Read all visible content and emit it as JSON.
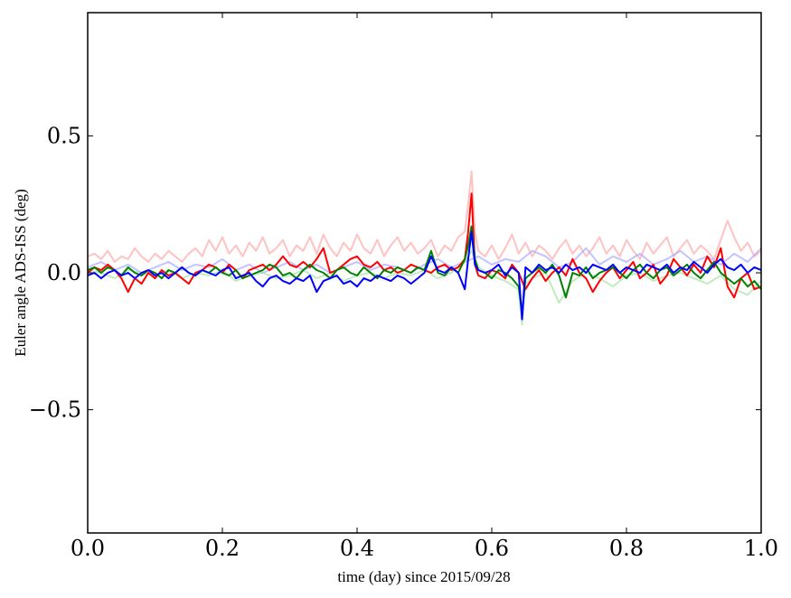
{
  "chart_data": {
    "type": "line",
    "title": "",
    "xlabel": "time (day) since 2015/09/28",
    "ylabel": "Euler angle ADS-ISS (deg)",
    "xlim": [
      0.0,
      1.0
    ],
    "ylim": [
      -0.95,
      0.95
    ],
    "xticks": [
      {
        "value": 0.0,
        "label": "0.0"
      },
      {
        "value": 0.2,
        "label": "0.2"
      },
      {
        "value": 0.4,
        "label": "0.4"
      },
      {
        "value": 0.6,
        "label": "0.6"
      },
      {
        "value": 0.8,
        "label": "0.8"
      },
      {
        "value": 1.0,
        "label": "1.0"
      }
    ],
    "yticks": [
      {
        "value": 0.5,
        "label": "0.5"
      },
      {
        "value": 0.0,
        "label": "0.0"
      },
      {
        "value": -0.5,
        "label": "−0.5"
      }
    ],
    "grid": false,
    "legend": "none",
    "series": [
      {
        "color": "#ff9999",
        "opacity": 0.6,
        "x": [
          0.0,
          0.01,
          0.02,
          0.03,
          0.04,
          0.05,
          0.06,
          0.07,
          0.08,
          0.09,
          0.1,
          0.11,
          0.12,
          0.13,
          0.14,
          0.15,
          0.16,
          0.17,
          0.18,
          0.19,
          0.2,
          0.21,
          0.22,
          0.23,
          0.24,
          0.25,
          0.26,
          0.27,
          0.28,
          0.29,
          0.3,
          0.31,
          0.32,
          0.33,
          0.34,
          0.35,
          0.36,
          0.37,
          0.38,
          0.39,
          0.4,
          0.41,
          0.42,
          0.43,
          0.44,
          0.45,
          0.46,
          0.47,
          0.48,
          0.49,
          0.5,
          0.51,
          0.52,
          0.53,
          0.54,
          0.55,
          0.56,
          0.565,
          0.57,
          0.575,
          0.58,
          0.59,
          0.6,
          0.61,
          0.62,
          0.63,
          0.64,
          0.65,
          0.66,
          0.67,
          0.68,
          0.69,
          0.7,
          0.71,
          0.72,
          0.73,
          0.74,
          0.75,
          0.76,
          0.77,
          0.78,
          0.79,
          0.8,
          0.81,
          0.82,
          0.83,
          0.84,
          0.85,
          0.86,
          0.87,
          0.88,
          0.89,
          0.9,
          0.91,
          0.92,
          0.93,
          0.94,
          0.95,
          0.96,
          0.97,
          0.98,
          0.99,
          1.0
        ],
        "y": [
          0.06,
          0.07,
          0.05,
          0.08,
          0.04,
          0.06,
          0.05,
          0.09,
          0.06,
          0.04,
          0.07,
          0.05,
          0.08,
          0.06,
          0.04,
          0.07,
          0.09,
          0.06,
          0.12,
          0.08,
          0.13,
          0.07,
          0.1,
          0.06,
          0.11,
          0.08,
          0.13,
          0.07,
          0.09,
          0.12,
          0.06,
          0.1,
          0.08,
          0.13,
          0.07,
          0.14,
          0.09,
          0.06,
          0.11,
          0.08,
          0.14,
          0.09,
          0.07,
          0.12,
          0.06,
          0.1,
          0.13,
          0.08,
          0.11,
          0.07,
          0.09,
          0.12,
          0.06,
          0.1,
          0.08,
          0.13,
          0.15,
          0.25,
          0.37,
          0.15,
          0.08,
          0.06,
          0.1,
          0.05,
          0.09,
          0.14,
          0.07,
          0.11,
          0.06,
          0.1,
          0.08,
          0.05,
          0.09,
          0.12,
          0.07,
          0.1,
          0.06,
          0.09,
          0.13,
          0.07,
          0.1,
          0.06,
          0.12,
          0.08,
          0.05,
          0.11,
          0.07,
          0.1,
          0.13,
          0.06,
          0.09,
          0.12,
          0.07,
          0.1,
          0.08,
          0.05,
          0.12,
          0.19,
          0.13,
          0.08,
          0.11,
          0.06,
          0.08
        ]
      },
      {
        "color": "#aaaaff",
        "opacity": 0.7,
        "x": [
          0.0,
          0.02,
          0.04,
          0.06,
          0.08,
          0.1,
          0.12,
          0.14,
          0.16,
          0.18,
          0.2,
          0.22,
          0.24,
          0.26,
          0.28,
          0.3,
          0.32,
          0.34,
          0.36,
          0.38,
          0.4,
          0.42,
          0.44,
          0.46,
          0.48,
          0.5,
          0.52,
          0.54,
          0.56,
          0.58,
          0.6,
          0.62,
          0.64,
          0.66,
          0.68,
          0.7,
          0.72,
          0.74,
          0.76,
          0.78,
          0.8,
          0.82,
          0.84,
          0.86,
          0.88,
          0.9,
          0.92,
          0.94,
          0.96,
          0.98,
          1.0
        ],
        "y": [
          0.02,
          0.04,
          0.01,
          0.03,
          0.0,
          0.02,
          0.04,
          0.01,
          0.03,
          0.02,
          0.05,
          0.01,
          0.03,
          0.0,
          0.02,
          0.04,
          0.01,
          0.03,
          0.0,
          0.02,
          0.04,
          0.01,
          0.03,
          0.02,
          0.0,
          0.03,
          0.05,
          0.02,
          0.04,
          0.06,
          0.03,
          0.05,
          0.04,
          0.08,
          0.06,
          0.02,
          0.04,
          0.09,
          0.03,
          0.06,
          0.04,
          0.07,
          0.03,
          0.05,
          0.08,
          0.04,
          0.06,
          0.03,
          0.07,
          0.04,
          0.09
        ]
      },
      {
        "color": "#99dd99",
        "opacity": 0.6,
        "x": [
          0.0,
          0.02,
          0.04,
          0.06,
          0.08,
          0.1,
          0.12,
          0.14,
          0.16,
          0.18,
          0.2,
          0.22,
          0.24,
          0.26,
          0.28,
          0.3,
          0.32,
          0.34,
          0.36,
          0.38,
          0.4,
          0.42,
          0.44,
          0.46,
          0.48,
          0.5,
          0.52,
          0.54,
          0.56,
          0.57,
          0.58,
          0.6,
          0.62,
          0.64,
          0.645,
          0.65,
          0.66,
          0.68,
          0.7,
          0.72,
          0.74,
          0.76,
          0.78,
          0.8,
          0.82,
          0.84,
          0.86,
          0.88,
          0.9,
          0.92,
          0.94,
          0.96,
          0.98,
          1.0
        ],
        "y": [
          0.01,
          0.0,
          -0.02,
          0.01,
          0.0,
          -0.01,
          0.01,
          -0.02,
          0.0,
          -0.01,
          0.01,
          -0.03,
          -0.01,
          0.0,
          -0.02,
          -0.01,
          0.01,
          -0.02,
          0.0,
          -0.03,
          -0.01,
          0.0,
          -0.02,
          0.0,
          -0.01,
          0.01,
          -0.02,
          0.0,
          0.04,
          0.08,
          0.02,
          -0.01,
          -0.03,
          -0.06,
          -0.19,
          -0.04,
          -0.02,
          0.0,
          -0.11,
          -0.03,
          0.0,
          -0.02,
          -0.05,
          -0.01,
          0.0,
          -0.03,
          -0.01,
          0.0,
          -0.02,
          -0.04,
          -0.01,
          -0.06,
          -0.08,
          -0.03
        ]
      },
      {
        "color": "#ff0000",
        "opacity": 1,
        "x": [
          0.0,
          0.01,
          0.02,
          0.03,
          0.04,
          0.05,
          0.06,
          0.07,
          0.08,
          0.09,
          0.1,
          0.11,
          0.12,
          0.13,
          0.14,
          0.15,
          0.16,
          0.17,
          0.18,
          0.19,
          0.2,
          0.21,
          0.22,
          0.23,
          0.24,
          0.25,
          0.26,
          0.27,
          0.28,
          0.29,
          0.3,
          0.31,
          0.32,
          0.33,
          0.34,
          0.35,
          0.36,
          0.37,
          0.38,
          0.39,
          0.4,
          0.41,
          0.42,
          0.43,
          0.44,
          0.45,
          0.46,
          0.47,
          0.48,
          0.49,
          0.5,
          0.51,
          0.52,
          0.53,
          0.54,
          0.55,
          0.56,
          0.565,
          0.57,
          0.575,
          0.58,
          0.59,
          0.6,
          0.61,
          0.62,
          0.63,
          0.64,
          0.65,
          0.66,
          0.67,
          0.68,
          0.69,
          0.7,
          0.71,
          0.72,
          0.73,
          0.74,
          0.75,
          0.76,
          0.77,
          0.78,
          0.79,
          0.8,
          0.81,
          0.82,
          0.83,
          0.84,
          0.85,
          0.86,
          0.87,
          0.88,
          0.89,
          0.9,
          0.91,
          0.92,
          0.93,
          0.94,
          0.95,
          0.96,
          0.97,
          0.98,
          0.99,
          1.0
        ],
        "y": [
          0.0,
          0.02,
          0.01,
          0.03,
          0.01,
          -0.02,
          -0.07,
          -0.02,
          -0.04,
          0.0,
          -0.02,
          0.01,
          -0.01,
          0.0,
          -0.02,
          -0.04,
          0.0,
          0.01,
          0.03,
          0.02,
          0.0,
          0.03,
          0.01,
          -0.02,
          0.01,
          0.02,
          0.03,
          0.01,
          0.03,
          0.06,
          0.03,
          0.02,
          0.04,
          0.02,
          0.05,
          0.09,
          0.0,
          0.01,
          0.03,
          0.05,
          0.06,
          0.03,
          0.02,
          0.04,
          0.01,
          0.02,
          0.0,
          0.01,
          0.03,
          0.02,
          0.01,
          0.0,
          0.02,
          0.03,
          0.01,
          0.02,
          0.05,
          0.15,
          0.29,
          0.03,
          -0.01,
          -0.02,
          0.01,
          0.0,
          -0.02,
          0.03,
          0.0,
          -0.06,
          -0.02,
          0.01,
          -0.03,
          0.0,
          0.02,
          -0.01,
          0.05,
          0.0,
          -0.02,
          -0.07,
          -0.03,
          0.0,
          0.02,
          -0.02,
          0.01,
          0.04,
          -0.02,
          0.0,
          0.03,
          -0.04,
          -0.01,
          0.05,
          0.02,
          -0.01,
          0.03,
          0.0,
          0.06,
          0.02,
          0.09,
          -0.05,
          -0.09,
          -0.02,
          0.0,
          -0.06,
          -0.05
        ]
      },
      {
        "color": "#008000",
        "opacity": 1,
        "x": [
          0.0,
          0.01,
          0.02,
          0.03,
          0.04,
          0.05,
          0.06,
          0.07,
          0.08,
          0.09,
          0.1,
          0.11,
          0.12,
          0.13,
          0.14,
          0.15,
          0.16,
          0.17,
          0.18,
          0.19,
          0.2,
          0.21,
          0.22,
          0.23,
          0.24,
          0.25,
          0.26,
          0.27,
          0.28,
          0.29,
          0.3,
          0.31,
          0.32,
          0.33,
          0.34,
          0.35,
          0.36,
          0.37,
          0.38,
          0.39,
          0.4,
          0.41,
          0.42,
          0.43,
          0.44,
          0.45,
          0.46,
          0.47,
          0.48,
          0.49,
          0.5,
          0.51,
          0.52,
          0.53,
          0.54,
          0.55,
          0.56,
          0.565,
          0.57,
          0.575,
          0.58,
          0.59,
          0.6,
          0.61,
          0.62,
          0.63,
          0.64,
          0.645,
          0.65,
          0.66,
          0.67,
          0.68,
          0.69,
          0.7,
          0.71,
          0.72,
          0.73,
          0.74,
          0.75,
          0.76,
          0.77,
          0.78,
          0.79,
          0.8,
          0.81,
          0.82,
          0.83,
          0.84,
          0.85,
          0.86,
          0.87,
          0.88,
          0.89,
          0.9,
          0.91,
          0.92,
          0.93,
          0.94,
          0.95,
          0.96,
          0.97,
          0.98,
          0.99,
          1.0
        ],
        "y": [
          0.01,
          0.02,
          0.0,
          0.02,
          0.01,
          -0.01,
          0.02,
          0.0,
          -0.01,
          0.01,
          0.0,
          -0.02,
          0.01,
          0.0,
          0.02,
          0.0,
          -0.01,
          0.01,
          0.0,
          0.02,
          0.0,
          -0.01,
          0.01,
          -0.02,
          -0.01,
          0.0,
          0.01,
          0.03,
          0.02,
          -0.01,
          0.0,
          -0.02,
          0.01,
          0.03,
          0.01,
          0.0,
          -0.02,
          0.01,
          0.02,
          0.0,
          -0.01,
          0.02,
          0.0,
          -0.02,
          0.01,
          0.0,
          0.02,
          0.01,
          0.0,
          0.02,
          0.01,
          0.08,
          0.0,
          -0.01,
          0.02,
          0.0,
          0.05,
          0.1,
          0.17,
          0.05,
          0.01,
          0.0,
          -0.02,
          0.01,
          0.0,
          -0.02,
          -0.05,
          -0.15,
          -0.02,
          0.0,
          0.02,
          0.0,
          0.03,
          -0.01,
          -0.09,
          0.0,
          -0.01,
          0.02,
          -0.02,
          0.0,
          0.01,
          0.02,
          0.0,
          -0.02,
          0.01,
          0.03,
          0.0,
          -0.02,
          0.01,
          0.02,
          -0.01,
          0.01,
          0.03,
          0.0,
          -0.02,
          0.01,
          0.04,
          0.0,
          -0.02,
          -0.04,
          -0.02,
          -0.05,
          -0.03,
          -0.06
        ]
      },
      {
        "color": "#0000ff",
        "opacity": 1,
        "x": [
          0.0,
          0.01,
          0.02,
          0.03,
          0.04,
          0.05,
          0.06,
          0.07,
          0.08,
          0.09,
          0.1,
          0.11,
          0.12,
          0.13,
          0.14,
          0.15,
          0.16,
          0.17,
          0.18,
          0.19,
          0.2,
          0.21,
          0.22,
          0.23,
          0.24,
          0.25,
          0.26,
          0.27,
          0.28,
          0.29,
          0.3,
          0.31,
          0.32,
          0.33,
          0.34,
          0.35,
          0.36,
          0.37,
          0.38,
          0.39,
          0.4,
          0.41,
          0.42,
          0.43,
          0.44,
          0.45,
          0.46,
          0.47,
          0.48,
          0.49,
          0.5,
          0.51,
          0.52,
          0.53,
          0.54,
          0.55,
          0.56,
          0.565,
          0.57,
          0.575,
          0.58,
          0.59,
          0.6,
          0.61,
          0.62,
          0.63,
          0.64,
          0.645,
          0.65,
          0.66,
          0.67,
          0.68,
          0.69,
          0.7,
          0.71,
          0.72,
          0.73,
          0.74,
          0.75,
          0.76,
          0.77,
          0.78,
          0.79,
          0.8,
          0.81,
          0.82,
          0.83,
          0.84,
          0.85,
          0.86,
          0.87,
          0.88,
          0.89,
          0.9,
          0.91,
          0.92,
          0.93,
          0.94,
          0.95,
          0.96,
          0.97,
          0.98,
          0.99,
          1.0
        ],
        "y": [
          -0.01,
          0.0,
          -0.02,
          0.0,
          0.01,
          -0.01,
          0.0,
          -0.02,
          0.0,
          0.01,
          -0.01,
          0.0,
          -0.02,
          0.0,
          0.02,
          0.0,
          -0.01,
          0.01,
          0.0,
          -0.01,
          0.01,
          0.02,
          -0.02,
          -0.01,
          0.0,
          -0.03,
          -0.05,
          -0.02,
          -0.01,
          -0.03,
          -0.04,
          -0.02,
          -0.03,
          -0.01,
          -0.07,
          -0.03,
          -0.02,
          -0.01,
          -0.04,
          -0.03,
          -0.05,
          -0.02,
          -0.03,
          -0.01,
          -0.02,
          -0.03,
          -0.01,
          -0.02,
          -0.04,
          -0.02,
          0.0,
          0.06,
          0.01,
          0.0,
          0.02,
          0.0,
          -0.06,
          0.05,
          0.15,
          0.03,
          0.01,
          0.0,
          0.01,
          0.03,
          -0.01,
          0.02,
          0.0,
          -0.17,
          0.02,
          0.0,
          0.03,
          0.01,
          0.02,
          0.0,
          0.03,
          0.01,
          0.02,
          0.0,
          0.03,
          0.02,
          0.01,
          0.03,
          0.0,
          0.02,
          0.01,
          0.0,
          0.03,
          0.02,
          0.01,
          0.03,
          0.0,
          0.02,
          0.01,
          0.04,
          0.02,
          0.0,
          0.03,
          0.05,
          0.02,
          0.01,
          0.03,
          0.0,
          0.02,
          0.01
        ]
      }
    ]
  }
}
